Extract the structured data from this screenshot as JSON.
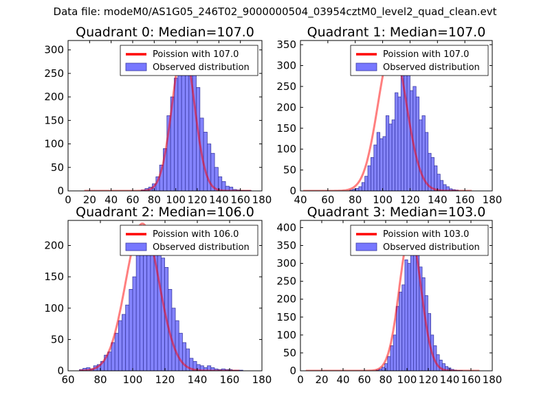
{
  "suptitle": "Data file: modeM0/AS1G05_246T02_9000000504_03954cztM0_level2_quad_clean.evt",
  "colors": {
    "bar_fill": "#7777ff",
    "bar_edge": "#3a3aa0",
    "line": "#ff0000"
  },
  "chart_data": [
    {
      "type": "bar",
      "title": "Quadrant 0: Median=107.0",
      "xlim": [
        0,
        180
      ],
      "ylim": [
        0,
        320
      ],
      "xticks": [
        0,
        20,
        40,
        60,
        80,
        100,
        120,
        140,
        160,
        180
      ],
      "yticks": [
        0,
        50,
        100,
        150,
        200,
        250,
        300
      ],
      "legend": [
        "Poission with 107.0",
        "Observed distribution"
      ],
      "bins_start": 68,
      "bin_width": 3.4,
      "values": [
        2,
        5,
        8,
        15,
        30,
        55,
        90,
        160,
        200,
        240,
        295,
        300,
        298,
        250,
        252,
        220,
        155,
        125,
        100,
        80,
        50,
        30,
        20,
        10,
        8,
        3,
        2,
        1,
        1,
        1
      ],
      "curve": {
        "mu": 107,
        "amp": 305,
        "xmin": 15,
        "xmax": 170
      }
    },
    {
      "type": "bar",
      "title": "Quadrant 1: Median=107.0",
      "xlim": [
        40,
        180
      ],
      "ylim": [
        0,
        360
      ],
      "xticks": [
        40,
        60,
        80,
        100,
        120,
        140,
        160,
        180
      ],
      "yticks": [
        0,
        50,
        100,
        150,
        200,
        250,
        300,
        350
      ],
      "legend": [
        "Poission with 107.0",
        "Observed distribution"
      ],
      "bins_start": 76,
      "bin_width": 2.2,
      "values": [
        2,
        4,
        6,
        10,
        20,
        35,
        60,
        80,
        110,
        140,
        125,
        130,
        180,
        160,
        170,
        235,
        225,
        285,
        320,
        315,
        240,
        250,
        225,
        170,
        180,
        140,
        90,
        80,
        60,
        40,
        25,
        15,
        10,
        5,
        3,
        2
      ],
      "curve": {
        "mu": 107,
        "amp": 345,
        "xmin": 42,
        "xmax": 165
      }
    },
    {
      "type": "bar",
      "title": "Quadrant 2: Median=106.0",
      "xlim": [
        60,
        180
      ],
      "ylim": [
        0,
        240
      ],
      "xticks": [
        60,
        80,
        100,
        120,
        140,
        160,
        180
      ],
      "yticks": [
        0,
        50,
        100,
        150,
        200
      ],
      "legend": [
        "Poission with 106.0",
        "Observed distribution"
      ],
      "bins_start": 67,
      "bin_width": 2.2,
      "values": [
        2,
        4,
        5,
        3,
        8,
        10,
        15,
        25,
        30,
        45,
        60,
        80,
        90,
        105,
        130,
        150,
        185,
        200,
        210,
        215,
        225,
        200,
        190,
        180,
        165,
        130,
        100,
        80,
        60,
        45,
        35,
        20,
        15,
        10,
        8,
        5,
        8,
        5,
        3,
        2,
        3,
        2,
        2,
        1,
        1,
        1
      ],
      "curve": {
        "mu": 106,
        "amp": 235,
        "xmin": 67,
        "xmax": 166
      }
    },
    {
      "type": "bar",
      "title": "Quadrant 3: Median=103.0",
      "xlim": [
        0,
        180
      ],
      "ylim": [
        0,
        420
      ],
      "xticks": [
        0,
        20,
        40,
        60,
        80,
        100,
        120,
        140,
        160,
        180
      ],
      "yticks": [
        0,
        50,
        100,
        150,
        200,
        250,
        300,
        350,
        400
      ],
      "legend": [
        "Poission with 103.0",
        "Observed distribution"
      ],
      "bins_start": 71,
      "bin_width": 2.7,
      "values": [
        2,
        5,
        10,
        20,
        40,
        70,
        100,
        180,
        220,
        240,
        310,
        300,
        380,
        400,
        330,
        290,
        260,
        210,
        160,
        100,
        70,
        45,
        30,
        20,
        12,
        8,
        4,
        2,
        1,
        1
      ],
      "curve": {
        "mu": 103,
        "amp": 385,
        "xmin": 5,
        "xmax": 168
      }
    }
  ]
}
